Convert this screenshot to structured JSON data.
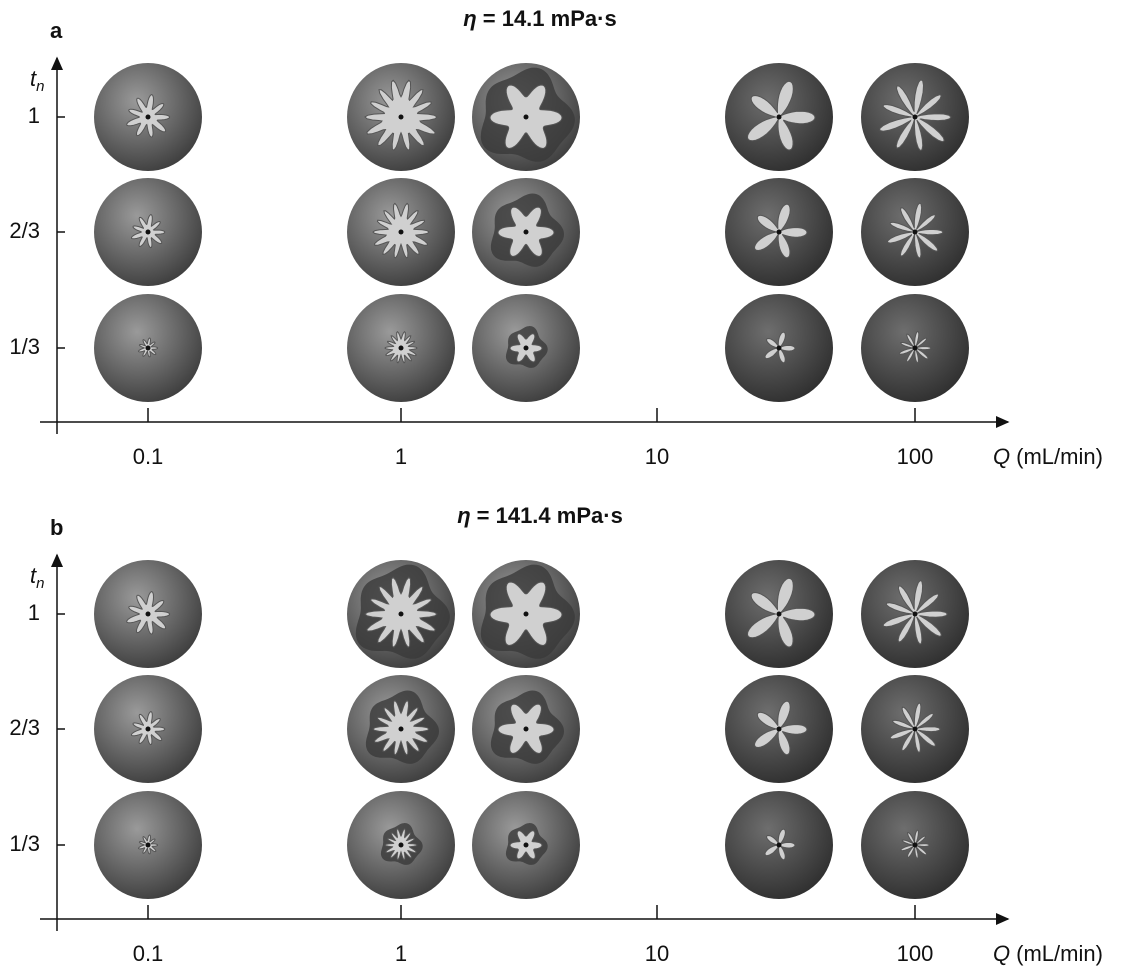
{
  "panels": [
    {
      "label": "a",
      "title": {
        "symbol": "η",
        "text": "= 14.1 mPa·s"
      },
      "y_axis": {
        "symbol": "t",
        "subscript": "n",
        "ticks": [
          "1",
          "2/3",
          "1/3"
        ]
      },
      "x_axis": {
        "ticks": [
          "0.1",
          "1",
          "10",
          "100"
        ],
        "symbol": "Q",
        "unit": "(mL/min)"
      }
    },
    {
      "label": "b",
      "title": {
        "symbol": "η",
        "text": "= 141.4 mPa·s"
      },
      "y_axis": {
        "symbol": "t",
        "subscript": "n",
        "ticks": [
          "1",
          "2/3",
          "1/3"
        ]
      },
      "x_axis": {
        "ticks": [
          "0.1",
          "1",
          "10",
          "100"
        ],
        "symbol": "Q",
        "unit": "(mL/min)"
      }
    }
  ]
}
